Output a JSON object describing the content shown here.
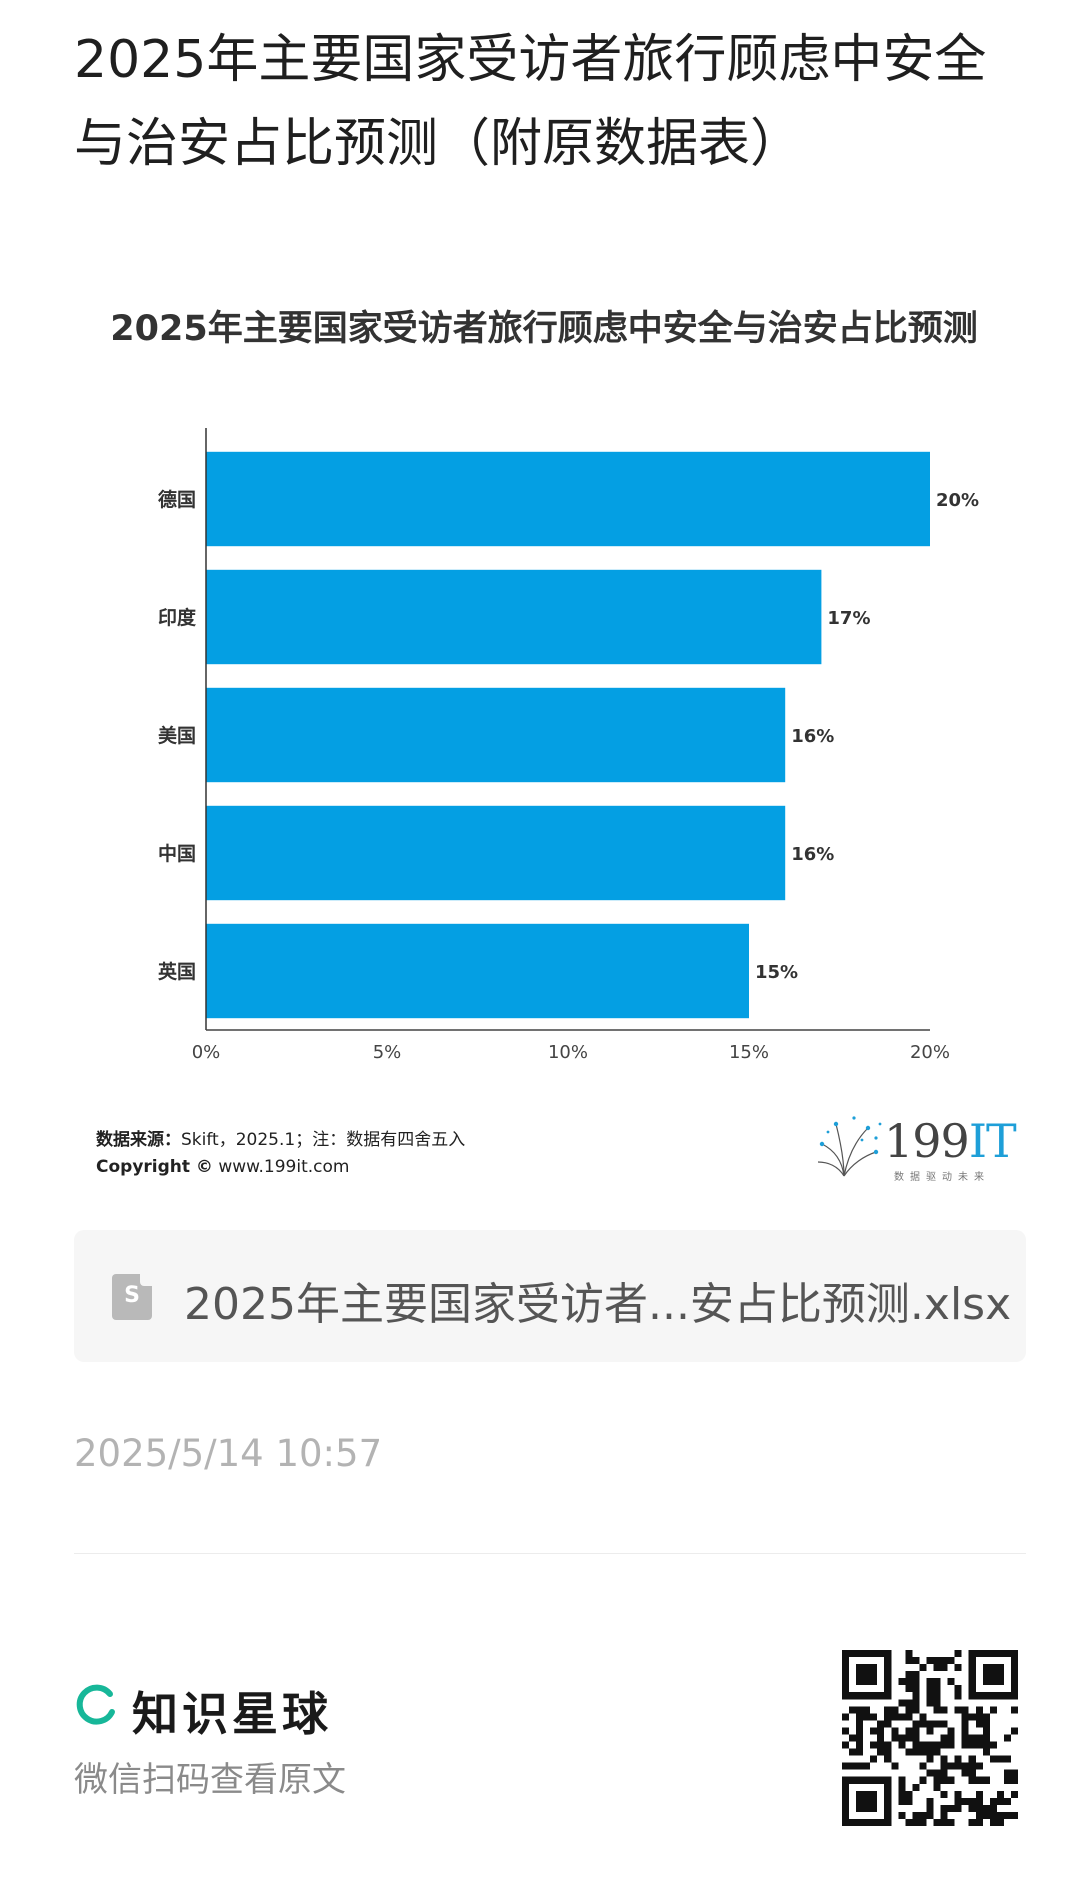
{
  "post": {
    "title": "2025年主要国家受访者旅行顾虑中安全与治安占比预测（附原数据表）"
  },
  "chart_data": {
    "type": "bar",
    "orientation": "horizontal",
    "title": "2025年主要国家受访者旅行顾虑中安全与治安占比预测",
    "categories": [
      "德国",
      "印度",
      "美国",
      "中国",
      "英国"
    ],
    "values": [
      20,
      17,
      16,
      16,
      15
    ],
    "value_labels": [
      "20%",
      "17%",
      "16%",
      "16%",
      "15%"
    ],
    "xlim": [
      0,
      20
    ],
    "xticks": [
      0,
      5,
      10,
      15,
      20
    ],
    "xtick_labels": [
      "0%",
      "5%",
      "10%",
      "15%",
      "20%"
    ],
    "xlabel": "",
    "ylabel": "",
    "bar_color": "#049fe3",
    "grid": false,
    "legend": false
  },
  "chart_footer": {
    "source_label": "数据来源：",
    "source_text": "Skift，2025.1；注：数据有四舍五入",
    "copyright_label": "Copyright ©",
    "copyright_text": " www.199it.com",
    "logo_num": "199",
    "logo_it": "IT",
    "logo_sub": "数据驱动未来"
  },
  "attachment": {
    "icon": "spreadsheet-file-icon",
    "icon_letter": "S",
    "file_name": "2025年主要国家受访者...安占比预测.xlsx"
  },
  "meta": {
    "timestamp": "2025/5/14 10:57"
  },
  "footer": {
    "brand_name": "知识星球",
    "brand_icon": "ring-logo-icon",
    "brand_color": "#17b799",
    "scan_hint": "微信扫码查看原文",
    "qr_icon": "qr-code-icon"
  }
}
